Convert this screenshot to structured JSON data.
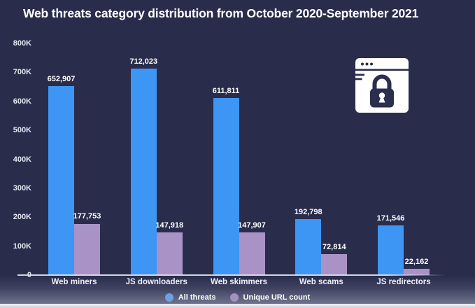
{
  "title": "Web threats category distribution from October 2020-September 2021",
  "chart_data": {
    "type": "bar",
    "title": "Web threats category distribution from October 2020-September 2021",
    "categories": [
      "Web miners",
      "JS downloaders",
      "Web skimmers",
      "Web scams",
      "JS redirectors"
    ],
    "series": [
      {
        "name": "All threats",
        "color": "#3d96f4",
        "legend_dot_color": "#6aa2e4",
        "values": [
          652907,
          712023,
          611811,
          192798,
          171546
        ],
        "labels": [
          "652,907",
          "712,023",
          "611,811",
          "192,798",
          "171,546"
        ]
      },
      {
        "name": "Unique URL count",
        "color": "#a993c6",
        "legend_dot_color": "#a391bf",
        "values": [
          177753,
          147918,
          147907,
          72814,
          22162
        ],
        "labels": [
          "177,753",
          "147,918",
          "147,907",
          "72,814",
          "22,162"
        ]
      }
    ],
    "ylim": [
      0,
      800000
    ],
    "ytick_values": [
      800000,
      700000,
      600000,
      500000,
      400000,
      300000,
      200000,
      100000,
      0
    ],
    "ytick_labels": [
      "800K",
      "700K",
      "600K",
      "500K",
      "400K",
      "300K",
      "200K",
      "100K",
      "0"
    ],
    "grid": false,
    "legend_position": "bottom",
    "background_color": "#292c4b"
  },
  "icon": {
    "name": "secure-browser-padlock",
    "window_color": "#ffffff",
    "detail_color": "#2b2e4d"
  }
}
